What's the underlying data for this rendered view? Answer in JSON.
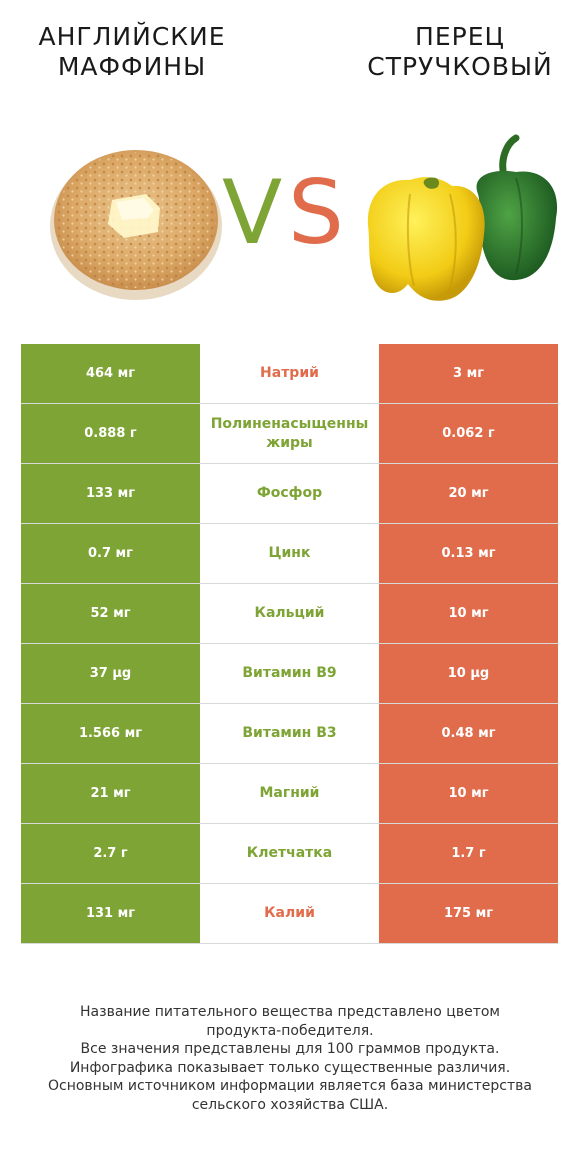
{
  "header": {
    "left_title": [
      "АНГЛИЙСКИЕ",
      "МАФФИНЫ"
    ],
    "right_title": [
      "ПЕРЕЦ",
      "СТРУЧКОВЫЙ"
    ],
    "vs_v": "V",
    "vs_s": "S"
  },
  "colors": {
    "left_accent": "#7da434",
    "right_accent": "#e06c4c"
  },
  "rows": [
    {
      "left": "464 мг",
      "nutrient": "Натрий",
      "right": "3 мг",
      "winner": "right"
    },
    {
      "left": "0.888 г",
      "nutrient": "Полиненасыщенны жиры",
      "right": "0.062 г",
      "winner": "left"
    },
    {
      "left": "133 мг",
      "nutrient": "Фосфор",
      "right": "20 мг",
      "winner": "left"
    },
    {
      "left": "0.7 мг",
      "nutrient": "Цинк",
      "right": "0.13 мг",
      "winner": "left"
    },
    {
      "left": "52 мг",
      "nutrient": "Кальций",
      "right": "10 мг",
      "winner": "left"
    },
    {
      "left": "37 µg",
      "nutrient": "Витамин B9",
      "right": "10 µg",
      "winner": "left"
    },
    {
      "left": "1.566 мг",
      "nutrient": "Витамин B3",
      "right": "0.48 мг",
      "winner": "left"
    },
    {
      "left": "21 мг",
      "nutrient": "Магний",
      "right": "10 мг",
      "winner": "left"
    },
    {
      "left": "2.7 г",
      "nutrient": "Клетчатка",
      "right": "1.7 г",
      "winner": "left"
    },
    {
      "left": "131 мг",
      "nutrient": "Калий",
      "right": "175 мг",
      "winner": "right"
    }
  ],
  "footer": [
    "Название питательного вещества представлено цветом",
    "продукта-победителя.",
    "Все значения представлены для 100 граммов продукта.",
    "Инфографика показывает только существенные различия.",
    "Основным источником информации является база министерства",
    "сельского хозяйства США."
  ]
}
